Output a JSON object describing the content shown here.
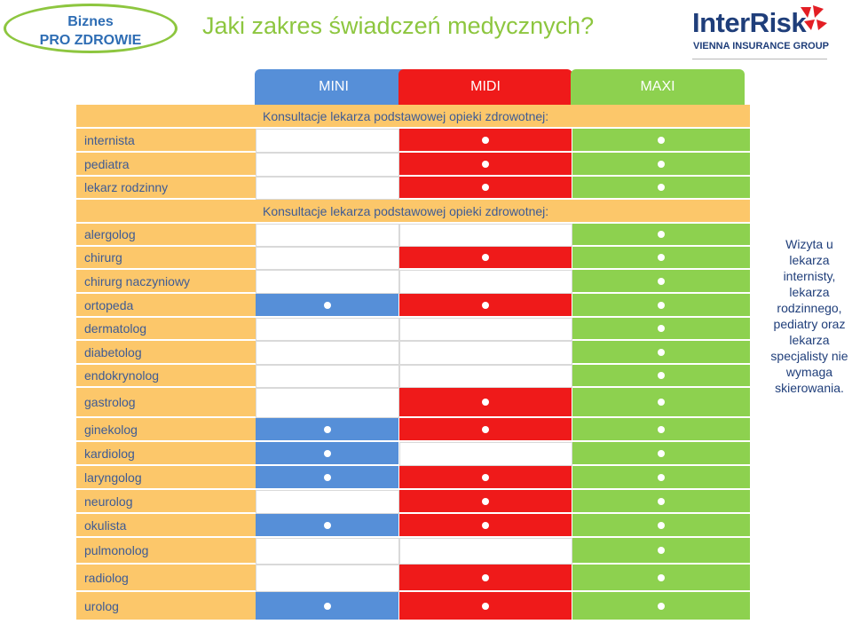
{
  "badge": {
    "line1": "Biznes",
    "line2": "PRO ZDROWIE"
  },
  "title": "Jaki zakres świadczeń medycznych?",
  "logo": {
    "name": "InterRisk",
    "tagline": "VIENNA INSURANCE GROUP"
  },
  "plans": [
    "MINI",
    "MIDI",
    "MAXI"
  ],
  "colors": {
    "mini": "#568fd8",
    "midi": "#ef1a1a",
    "maxi": "#8dd14f",
    "label": "#fcc76a",
    "text": "#3e5b94"
  },
  "sections": [
    {
      "title": "Konsultacje lekarza podstawowej opieki zdrowotnej:",
      "rows": [
        {
          "label": "internista",
          "mini": false,
          "midi": true,
          "maxi": true
        },
        {
          "label": "pediatra",
          "mini": false,
          "midi": true,
          "maxi": true
        },
        {
          "label": "lekarz rodzinny",
          "mini": false,
          "midi": true,
          "maxi": true
        }
      ]
    },
    {
      "title": "Konsultacje lekarza podstawowej opieki zdrowotnej:",
      "rows": [
        {
          "label": "alergolog",
          "mini": false,
          "midi": false,
          "maxi": true
        },
        {
          "label": "chirurg",
          "mini": false,
          "midi": true,
          "maxi": true
        },
        {
          "label": "chirurg naczyniowy",
          "mini": false,
          "midi": false,
          "maxi": true
        },
        {
          "label": "ortopeda",
          "mini": true,
          "midi": true,
          "maxi": true
        },
        {
          "label": "dermatolog",
          "mini": false,
          "midi": false,
          "maxi": true
        },
        {
          "label": "diabetolog",
          "mini": false,
          "midi": false,
          "maxi": true
        },
        {
          "label": "endokrynolog",
          "mini": false,
          "midi": false,
          "maxi": true
        },
        {
          "label": "gastrolog",
          "mini": false,
          "midi": true,
          "maxi": true
        },
        {
          "label": "ginekolog",
          "mini": true,
          "midi": true,
          "maxi": true
        },
        {
          "label": "kardiolog",
          "mini": true,
          "midi": false,
          "maxi": true
        },
        {
          "label": "laryngolog",
          "mini": true,
          "midi": true,
          "maxi": true
        },
        {
          "label": "neurolog",
          "mini": false,
          "midi": true,
          "maxi": true
        },
        {
          "label": "okulista",
          "mini": true,
          "midi": true,
          "maxi": true
        },
        {
          "label": "pulmonolog",
          "mini": false,
          "midi": false,
          "maxi": true
        },
        {
          "label": "radiolog",
          "mini": false,
          "midi": true,
          "maxi": true
        },
        {
          "label": "urolog",
          "mini": true,
          "midi": true,
          "maxi": true
        }
      ]
    }
  ],
  "note": "Wizyta u lekarza internisty, lekarza rodzinnego, pediatry oraz lekarza specjalisty nie wymaga skierowania."
}
